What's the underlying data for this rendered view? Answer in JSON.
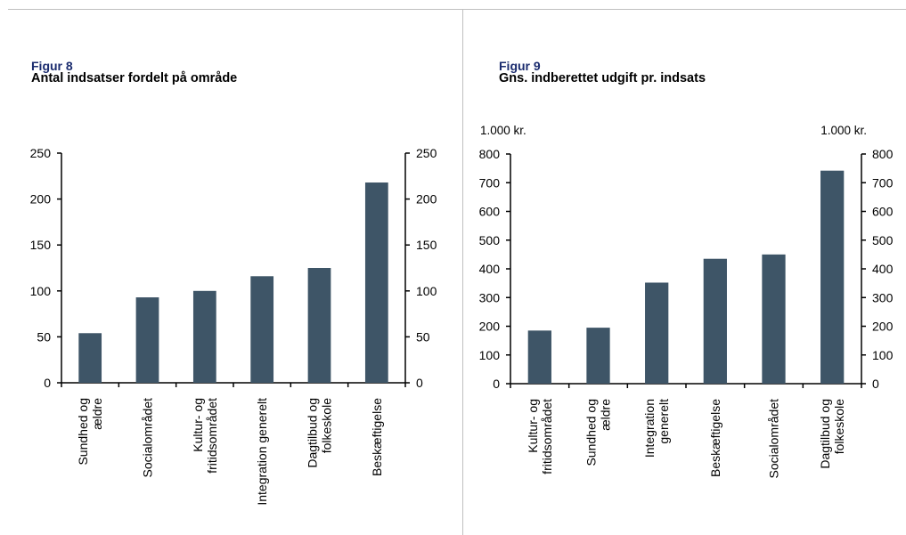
{
  "figures": [
    {
      "label": "Figur 8",
      "title": "Antal indsatser fordelt på område"
    },
    {
      "label": "Figur 9",
      "title": "Gns. indberettet udgift pr. indsats"
    }
  ],
  "chart_data": [
    {
      "type": "bar",
      "title": "Antal indsatser fordelt på område",
      "categories": [
        [
          "Sundhed og",
          "ældre"
        ],
        [
          "Socialområdet"
        ],
        [
          "Kultur- og",
          "fritidsområdet"
        ],
        [
          "Integration generelt"
        ],
        [
          "Dagtilbud og",
          "folkeskole"
        ],
        [
          "Beskæftigelse"
        ]
      ],
      "values": [
        54,
        93,
        100,
        116,
        125,
        218
      ],
      "ylim": [
        0,
        250
      ],
      "yticks": [
        0,
        50,
        100,
        150,
        200,
        250
      ],
      "y_unit_left": "",
      "y_unit_right": "",
      "bar_color": "#3e5567",
      "grid": false,
      "dual_axis": true
    },
    {
      "type": "bar",
      "title": "Gns. indberettet udgift pr. indsats",
      "categories": [
        [
          "Kultur- og",
          "fritidsområdet"
        ],
        [
          "Sundhed og",
          "ældre"
        ],
        [
          "Integration",
          "generelt"
        ],
        [
          "Beskæftigelse"
        ],
        [
          "Socialområdet"
        ],
        [
          "Dagtilbud og",
          "folkeskole"
        ]
      ],
      "values": [
        185,
        195,
        352,
        435,
        450,
        742
      ],
      "ylim": [
        0,
        800
      ],
      "yticks": [
        0,
        100,
        200,
        300,
        400,
        500,
        600,
        700,
        800
      ],
      "y_unit_left": "1.000 kr.",
      "y_unit_right": "1.000 kr.",
      "bar_color": "#3e5567",
      "grid": false,
      "dual_axis": true
    }
  ]
}
